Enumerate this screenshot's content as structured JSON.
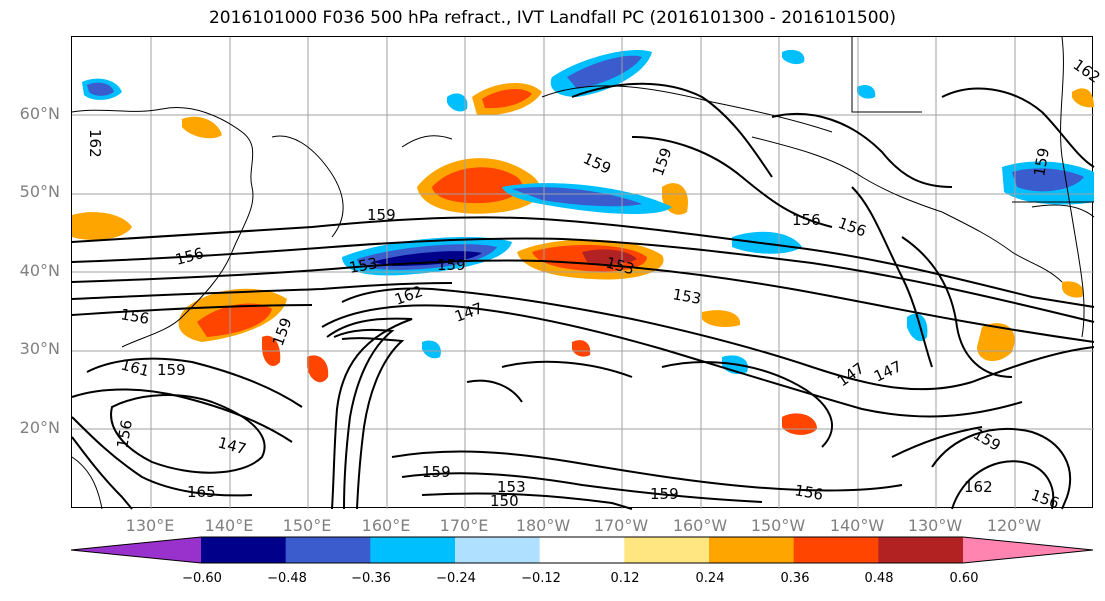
{
  "title": "2016101000 F036 500 hPa refract., IVT Landfall PC (2016101300 - 2016101500)",
  "lat_labels": [
    "60°N",
    "50°N",
    "40°N",
    "30°N",
    "20°N"
  ],
  "lon_labels": [
    "130°E",
    "140°E",
    "150°E",
    "160°E",
    "170°E",
    "180°W",
    "170°W",
    "160°W",
    "150°W",
    "140°W",
    "130°W",
    "120°W"
  ],
  "colorbar": {
    "colors": [
      "#9932cc",
      "#00008b",
      "#3a5ccc",
      "#00bfff",
      "#b0e0ff",
      "#ffffff",
      "#ffe680",
      "#ffa500",
      "#ff4500",
      "#b22222",
      "#ff85b0"
    ],
    "ticks": [
      "−0.60",
      "−0.48",
      "−0.36",
      "−0.24",
      "−0.12",
      "0.12",
      "0.24",
      "0.36",
      "0.48",
      "0.60"
    ]
  },
  "contour_labels": [
    "156",
    "162",
    "162",
    "159",
    "156",
    "153",
    "159",
    "162",
    "147",
    "153",
    "159",
    "153",
    "156",
    "159",
    "156",
    "161",
    "159",
    "159",
    "147",
    "147",
    "147",
    "156",
    "165",
    "159",
    "153",
    "150",
    "159",
    "156",
    "162",
    "156",
    "159",
    "159"
  ]
}
